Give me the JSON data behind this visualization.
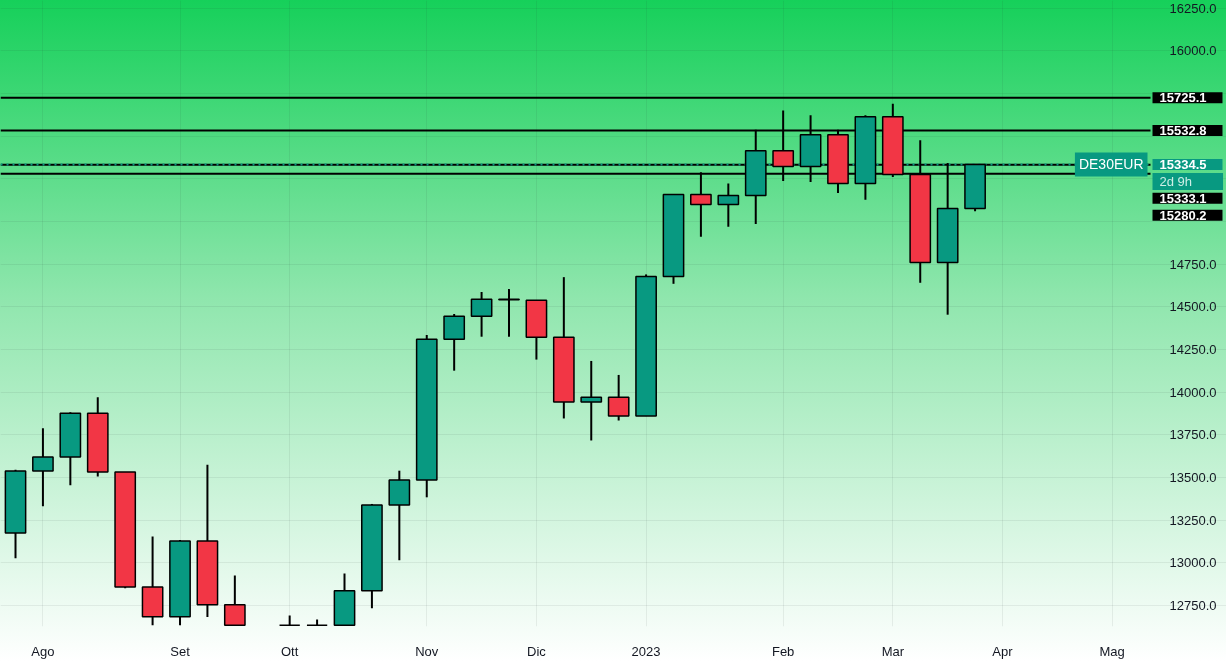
{
  "chart_data": {
    "type": "candlestick",
    "x": [
      "2022-07-25",
      "2022-08-01",
      "2022-08-08",
      "2022-08-15",
      "2022-08-22",
      "2022-08-29",
      "2022-09-05",
      "2022-09-12",
      "2022-09-19",
      "2022-10-03",
      "2022-10-10",
      "2022-10-17",
      "2022-10-24",
      "2022-10-31",
      "2022-11-07",
      "2022-11-14",
      "2022-11-21",
      "2022-11-28",
      "2022-12-05",
      "2022-12-12",
      "2022-12-19",
      "2022-12-26",
      "2023-01-02",
      "2023-01-09",
      "2023-01-16",
      "2023-01-23",
      "2023-01-30",
      "2023-02-06",
      "2023-02-13",
      "2023-02-20",
      "2023-02-27",
      "2023-03-06",
      "2023-03-13",
      "2023-03-20",
      "2023-03-27"
    ],
    "ohlc": [
      [
        13175,
        13545,
        13027,
        13538
      ],
      [
        13538,
        13789,
        13331,
        13620
      ],
      [
        13620,
        13883,
        13454,
        13877
      ],
      [
        13877,
        13971,
        13506,
        13532
      ],
      [
        13532,
        13532,
        12851,
        12859
      ],
      [
        12859,
        13154,
        12635,
        12684
      ],
      [
        12684,
        13134,
        12635,
        13128
      ],
      [
        13128,
        13575,
        12682,
        12754
      ],
      [
        12754,
        12926,
        12635,
        12635
      ],
      [
        12635,
        12692,
        12635,
        12635
      ],
      [
        12635,
        12668,
        12635,
        12635
      ],
      [
        12635,
        12937,
        12635,
        12836
      ],
      [
        12836,
        13345,
        12734,
        13339
      ],
      [
        13339,
        13540,
        13015,
        13485
      ],
      [
        13485,
        14335,
        13384,
        14310
      ],
      [
        14310,
        14458,
        14126,
        14445
      ],
      [
        14445,
        14587,
        14325,
        14544
      ],
      [
        14544,
        14604,
        14325,
        14542
      ],
      [
        14538,
        14538,
        14191,
        14322
      ],
      [
        14322,
        14674,
        13846,
        13942
      ],
      [
        13942,
        14183,
        13717,
        13971
      ],
      [
        13971,
        14101,
        13834,
        13860
      ],
      [
        13860,
        14690,
        13860,
        14678
      ],
      [
        14678,
        15158,
        14635,
        15158
      ],
      [
        15158,
        15288,
        14910,
        15100
      ],
      [
        15100,
        15222,
        14969,
        15152
      ],
      [
        15152,
        15538,
        14986,
        15415
      ],
      [
        15415,
        15651,
        15238,
        15322
      ],
      [
        15322,
        15622,
        15232,
        15509
      ],
      [
        15509,
        15538,
        15167,
        15222
      ],
      [
        15222,
        15622,
        15127,
        15614
      ],
      [
        15614,
        15690,
        15261,
        15275
      ],
      [
        15275,
        15476,
        14641,
        14760
      ],
      [
        14760,
        15343,
        14454,
        15076
      ],
      [
        15076,
        15334.5,
        15060,
        15334.5
      ]
    ],
    "colors": [
      "#089981",
      "#089981",
      "#089981",
      "#f23645",
      "#f23645",
      "#f23645",
      "#089981",
      "#f23645",
      "#f23645",
      "#000000",
      "#000000",
      "#089981",
      "#089981",
      "#089981",
      "#089981",
      "#089981",
      "#089981",
      "#f23645",
      "#f23645",
      "#f23645",
      "#089981",
      "#f23645",
      "#089981",
      "#089981",
      "#f23645",
      "#089981",
      "#089981",
      "#f23645",
      "#089981",
      "#f23645",
      "#089981",
      "#f23645",
      "#f23645",
      "#089981",
      "#089981"
    ],
    "xlim": [
      "2022-07-21T04:00",
      "2023-05-10T19:00"
    ],
    "xticks": [
      {
        "value": "2022-08-01",
        "label": "Ago"
      },
      {
        "value": "2022-09-05",
        "label": "Set"
      },
      {
        "value": "2022-10-03",
        "label": "Ott"
      },
      {
        "value": "2022-11-07",
        "label": "Nov"
      },
      {
        "value": "2022-12-05",
        "label": "Dic"
      },
      {
        "value": "2023-01-02",
        "label": "2023"
      },
      {
        "value": "2023-02-06",
        "label": "Feb"
      },
      {
        "value": "2023-03-06",
        "label": "Mar"
      },
      {
        "value": "2023-04-03",
        "label": "Apr"
      },
      {
        "value": "2023-05-01",
        "label": "Mag"
      }
    ],
    "ylim": [
      12627,
      16295
    ],
    "yticks": [
      {
        "value": 12750,
        "label": "12750.0"
      },
      {
        "value": 13000,
        "label": "13000.0"
      },
      {
        "value": 13250,
        "label": "13250.0"
      },
      {
        "value": 13500,
        "label": "13500.0"
      },
      {
        "value": 13750,
        "label": "13750.0"
      },
      {
        "value": 14000,
        "label": "14000.0"
      },
      {
        "value": 14250,
        "label": "14250.0"
      },
      {
        "value": 14500,
        "label": "14500.0"
      },
      {
        "value": 14750,
        "label": "14750.0"
      },
      {
        "value": 15000,
        "label": null
      },
      {
        "value": 15250,
        "label": null
      },
      {
        "value": 15500,
        "label": null
      },
      {
        "value": 15750,
        "label": null
      },
      {
        "value": 16000,
        "label": "16000.0"
      },
      {
        "value": 16250,
        "label": "16250.0"
      }
    ],
    "grid": true,
    "ref_lines": [
      {
        "axis": "y",
        "value": 15725.1,
        "label": "15725.1",
        "color": "#000000",
        "line_style": "solid"
      },
      {
        "axis": "y",
        "value": 15532.8,
        "label": "15532.8",
        "color": "#000000",
        "line_style": "solid"
      },
      {
        "axis": "y",
        "value": 15333.1,
        "label": "15333.1",
        "color": "#000000",
        "line_style": "solid"
      },
      {
        "axis": "y",
        "value": 15280.2,
        "label": "15280.2",
        "color": "#000000",
        "line_style": "solid"
      },
      {
        "axis": "y",
        "value": 15334.5,
        "label": "15334.5",
        "color": "#089981",
        "line_style": "dotted"
      }
    ],
    "annotations": [
      {
        "text": "DE30EUR",
        "y": 15334.5
      },
      "2d 9h"
    ]
  }
}
